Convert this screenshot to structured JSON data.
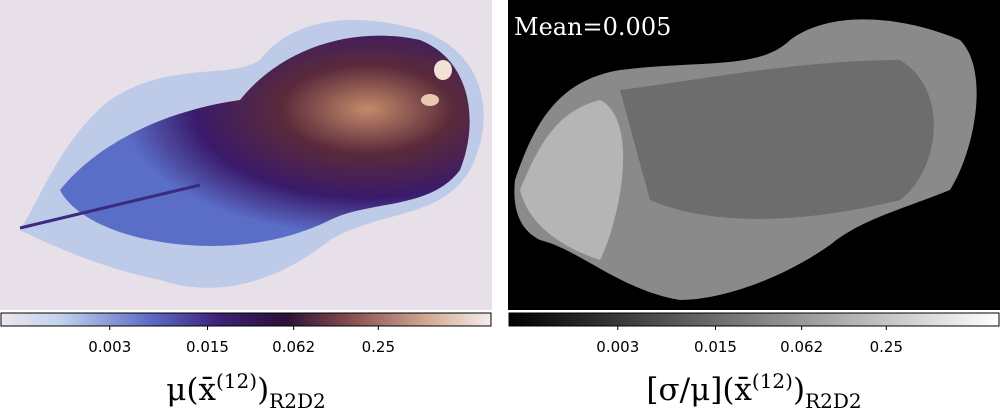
{
  "chart_data": [
    {
      "type": "image",
      "colormap": "cmr.ember_r",
      "title": {
        "main": "μ(x̄",
        "sup": "(12)",
        "close": ")",
        "sub": "R2D2"
      },
      "colorbar": {
        "log": true,
        "lim": [
          0.0005,
          1.6
        ],
        "ticks": [
          0.003,
          0.015,
          0.062,
          0.25
        ]
      }
    },
    {
      "type": "image",
      "colormap": "gray",
      "annotation": "Mean=0.005",
      "title": {
        "main": "[σ/μ](x̄",
        "sup": "(12)",
        "close": ")",
        "sub": "R2D2"
      },
      "colorbar": {
        "log": true,
        "lim": [
          0.0005,
          1.6
        ],
        "ticks": [
          0.003,
          0.015,
          0.062,
          0.25
        ]
      }
    }
  ]
}
